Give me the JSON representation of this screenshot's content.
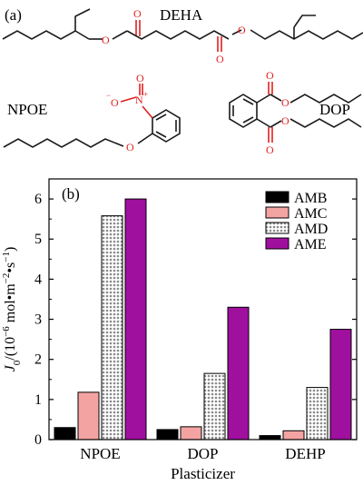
{
  "panel_a": {
    "label": "(a)",
    "molecules": [
      {
        "name": "DEHA"
      },
      {
        "name": "NPOE"
      },
      {
        "name": "DOP"
      }
    ],
    "atoms": {
      "oxygen": "O",
      "nitrogen": "N",
      "plus": "+",
      "minus": "−"
    },
    "colors": {
      "bond": "#1a1a1a",
      "heteroatom": "#e02020"
    }
  },
  "panel_b": {
    "label": "(b)"
  },
  "chart_data": {
    "type": "bar",
    "xlabel": "Plasticizer",
    "ylabel": "J0/(10−6 mol•m−2•s−1)",
    "categories": [
      "NPOE",
      "DOP",
      "DEHP"
    ],
    "ylim": [
      0,
      6.5
    ],
    "yticks": [
      0,
      1,
      2,
      3,
      4,
      5,
      6
    ],
    "legend_position": "top-right",
    "series": [
      {
        "name": "AMB",
        "values": [
          0.3,
          0.25,
          0.1
        ],
        "color": "#000000",
        "fill": "solid"
      },
      {
        "name": "AMC",
        "values": [
          1.18,
          0.32,
          0.22
        ],
        "color": "#f4a3a3",
        "fill": "solid"
      },
      {
        "name": "AMD",
        "values": [
          5.58,
          1.65,
          1.3
        ],
        "color": "#9a9a9a",
        "fill": "hatch"
      },
      {
        "name": "AME",
        "values": [
          6.0,
          3.3,
          2.75
        ],
        "color": "#a0109f",
        "fill": "solid"
      }
    ]
  }
}
